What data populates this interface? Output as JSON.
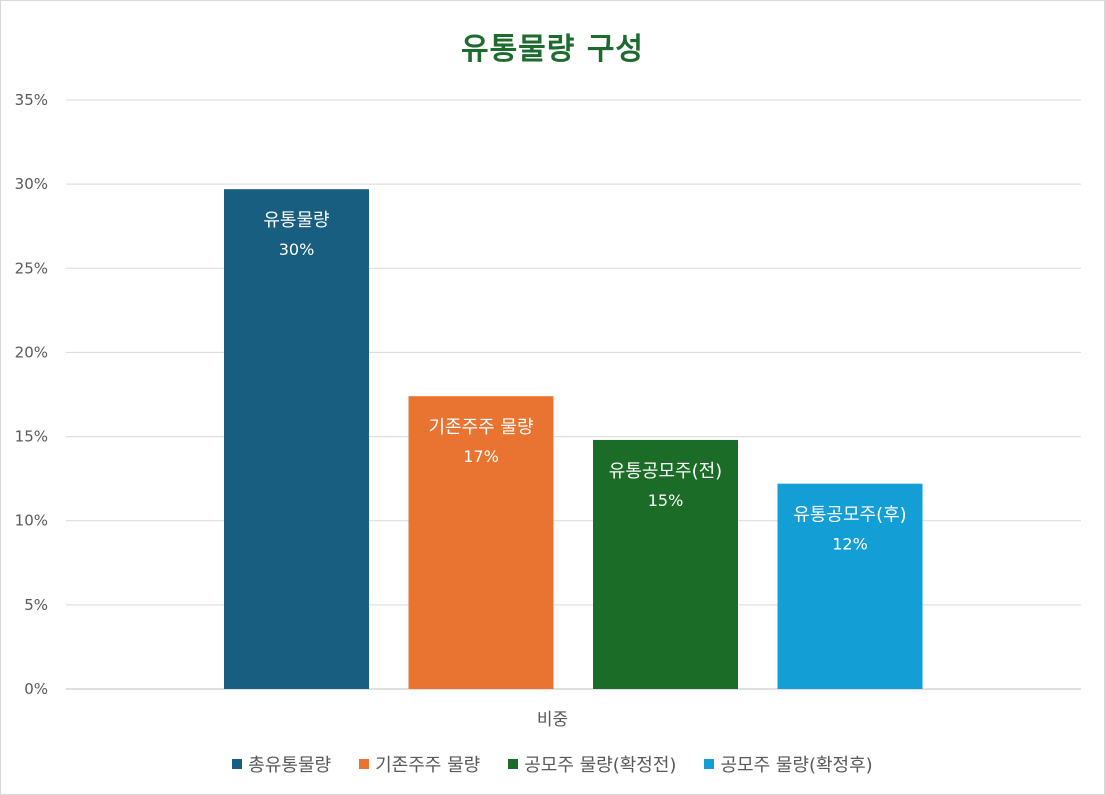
{
  "chart_data": {
    "type": "bar",
    "title": "유통물량 구성",
    "xlabel": "",
    "ylabel": "",
    "ylim": [
      0,
      35
    ],
    "yticks": [
      "0%",
      "5%",
      "10%",
      "15%",
      "20%",
      "25%",
      "30%",
      "35%"
    ],
    "grid": true,
    "category": "비중",
    "legend_position": "bottom",
    "series": [
      {
        "name": "총유통물량",
        "value": 29.7,
        "bar_label": "유통물량",
        "value_label": "30%",
        "color": "#185e80"
      },
      {
        "name": "기존주주 물량",
        "value": 17.4,
        "bar_label": "기존주주 물량",
        "value_label": "17%",
        "color": "#e97432"
      },
      {
        "name": "공모주 물량(확정전)",
        "value": 14.8,
        "bar_label": "유통공모주(전)",
        "value_label": "15%",
        "color": "#1b6c27"
      },
      {
        "name": "공모주 물량(확정후)",
        "value": 12.2,
        "bar_label": "유통공모주(후)",
        "value_label": "12%",
        "color": "#139ed6"
      }
    ]
  }
}
